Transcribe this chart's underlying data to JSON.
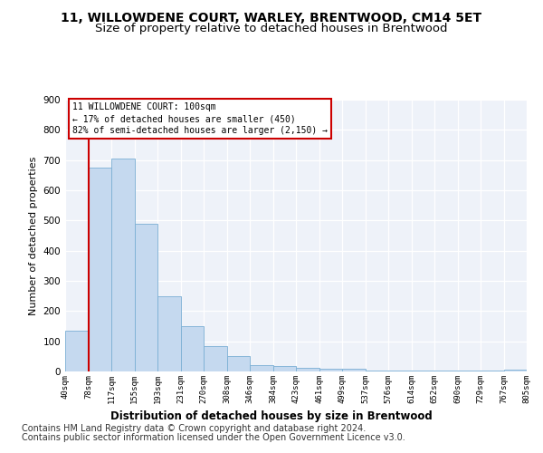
{
  "title": "11, WILLOWDENE COURT, WARLEY, BRENTWOOD, CM14 5ET",
  "subtitle": "Size of property relative to detached houses in Brentwood",
  "xlabel": "Distribution of detached houses by size in Brentwood",
  "ylabel": "Number of detached properties",
  "bar_values": [
    135,
    675,
    705,
    490,
    250,
    150,
    85,
    50,
    20,
    18,
    12,
    10,
    8,
    4,
    3,
    2,
    2,
    2,
    2,
    5
  ],
  "bar_labels": [
    "40sqm",
    "78sqm",
    "117sqm",
    "155sqm",
    "193sqm",
    "231sqm",
    "270sqm",
    "308sqm",
    "346sqm",
    "384sqm",
    "423sqm",
    "461sqm",
    "499sqm",
    "537sqm",
    "576sqm",
    "614sqm",
    "652sqm",
    "690sqm",
    "729sqm",
    "767sqm",
    "805sqm"
  ],
  "bar_color": "#c5d9ef",
  "bar_edge_color": "#7bafd4",
  "vline_x": 1,
  "vline_color": "#cc0000",
  "annotation_text": "11 WILLOWDENE COURT: 100sqm\n← 17% of detached houses are smaller (450)\n82% of semi-detached houses are larger (2,150) →",
  "annotation_box_color": "#ffffff",
  "annotation_box_edge": "#cc0000",
  "ylim": [
    0,
    900
  ],
  "yticks": [
    0,
    100,
    200,
    300,
    400,
    500,
    600,
    700,
    800,
    900
  ],
  "footer1": "Contains HM Land Registry data © Crown copyright and database right 2024.",
  "footer2": "Contains public sector information licensed under the Open Government Licence v3.0.",
  "background_color": "#ffffff",
  "plot_bg_color": "#eef2f9",
  "title_fontsize": 10,
  "subtitle_fontsize": 9.5,
  "axis_fontsize": 8.5,
  "footer_fontsize": 7,
  "ylabel_fontsize": 8
}
